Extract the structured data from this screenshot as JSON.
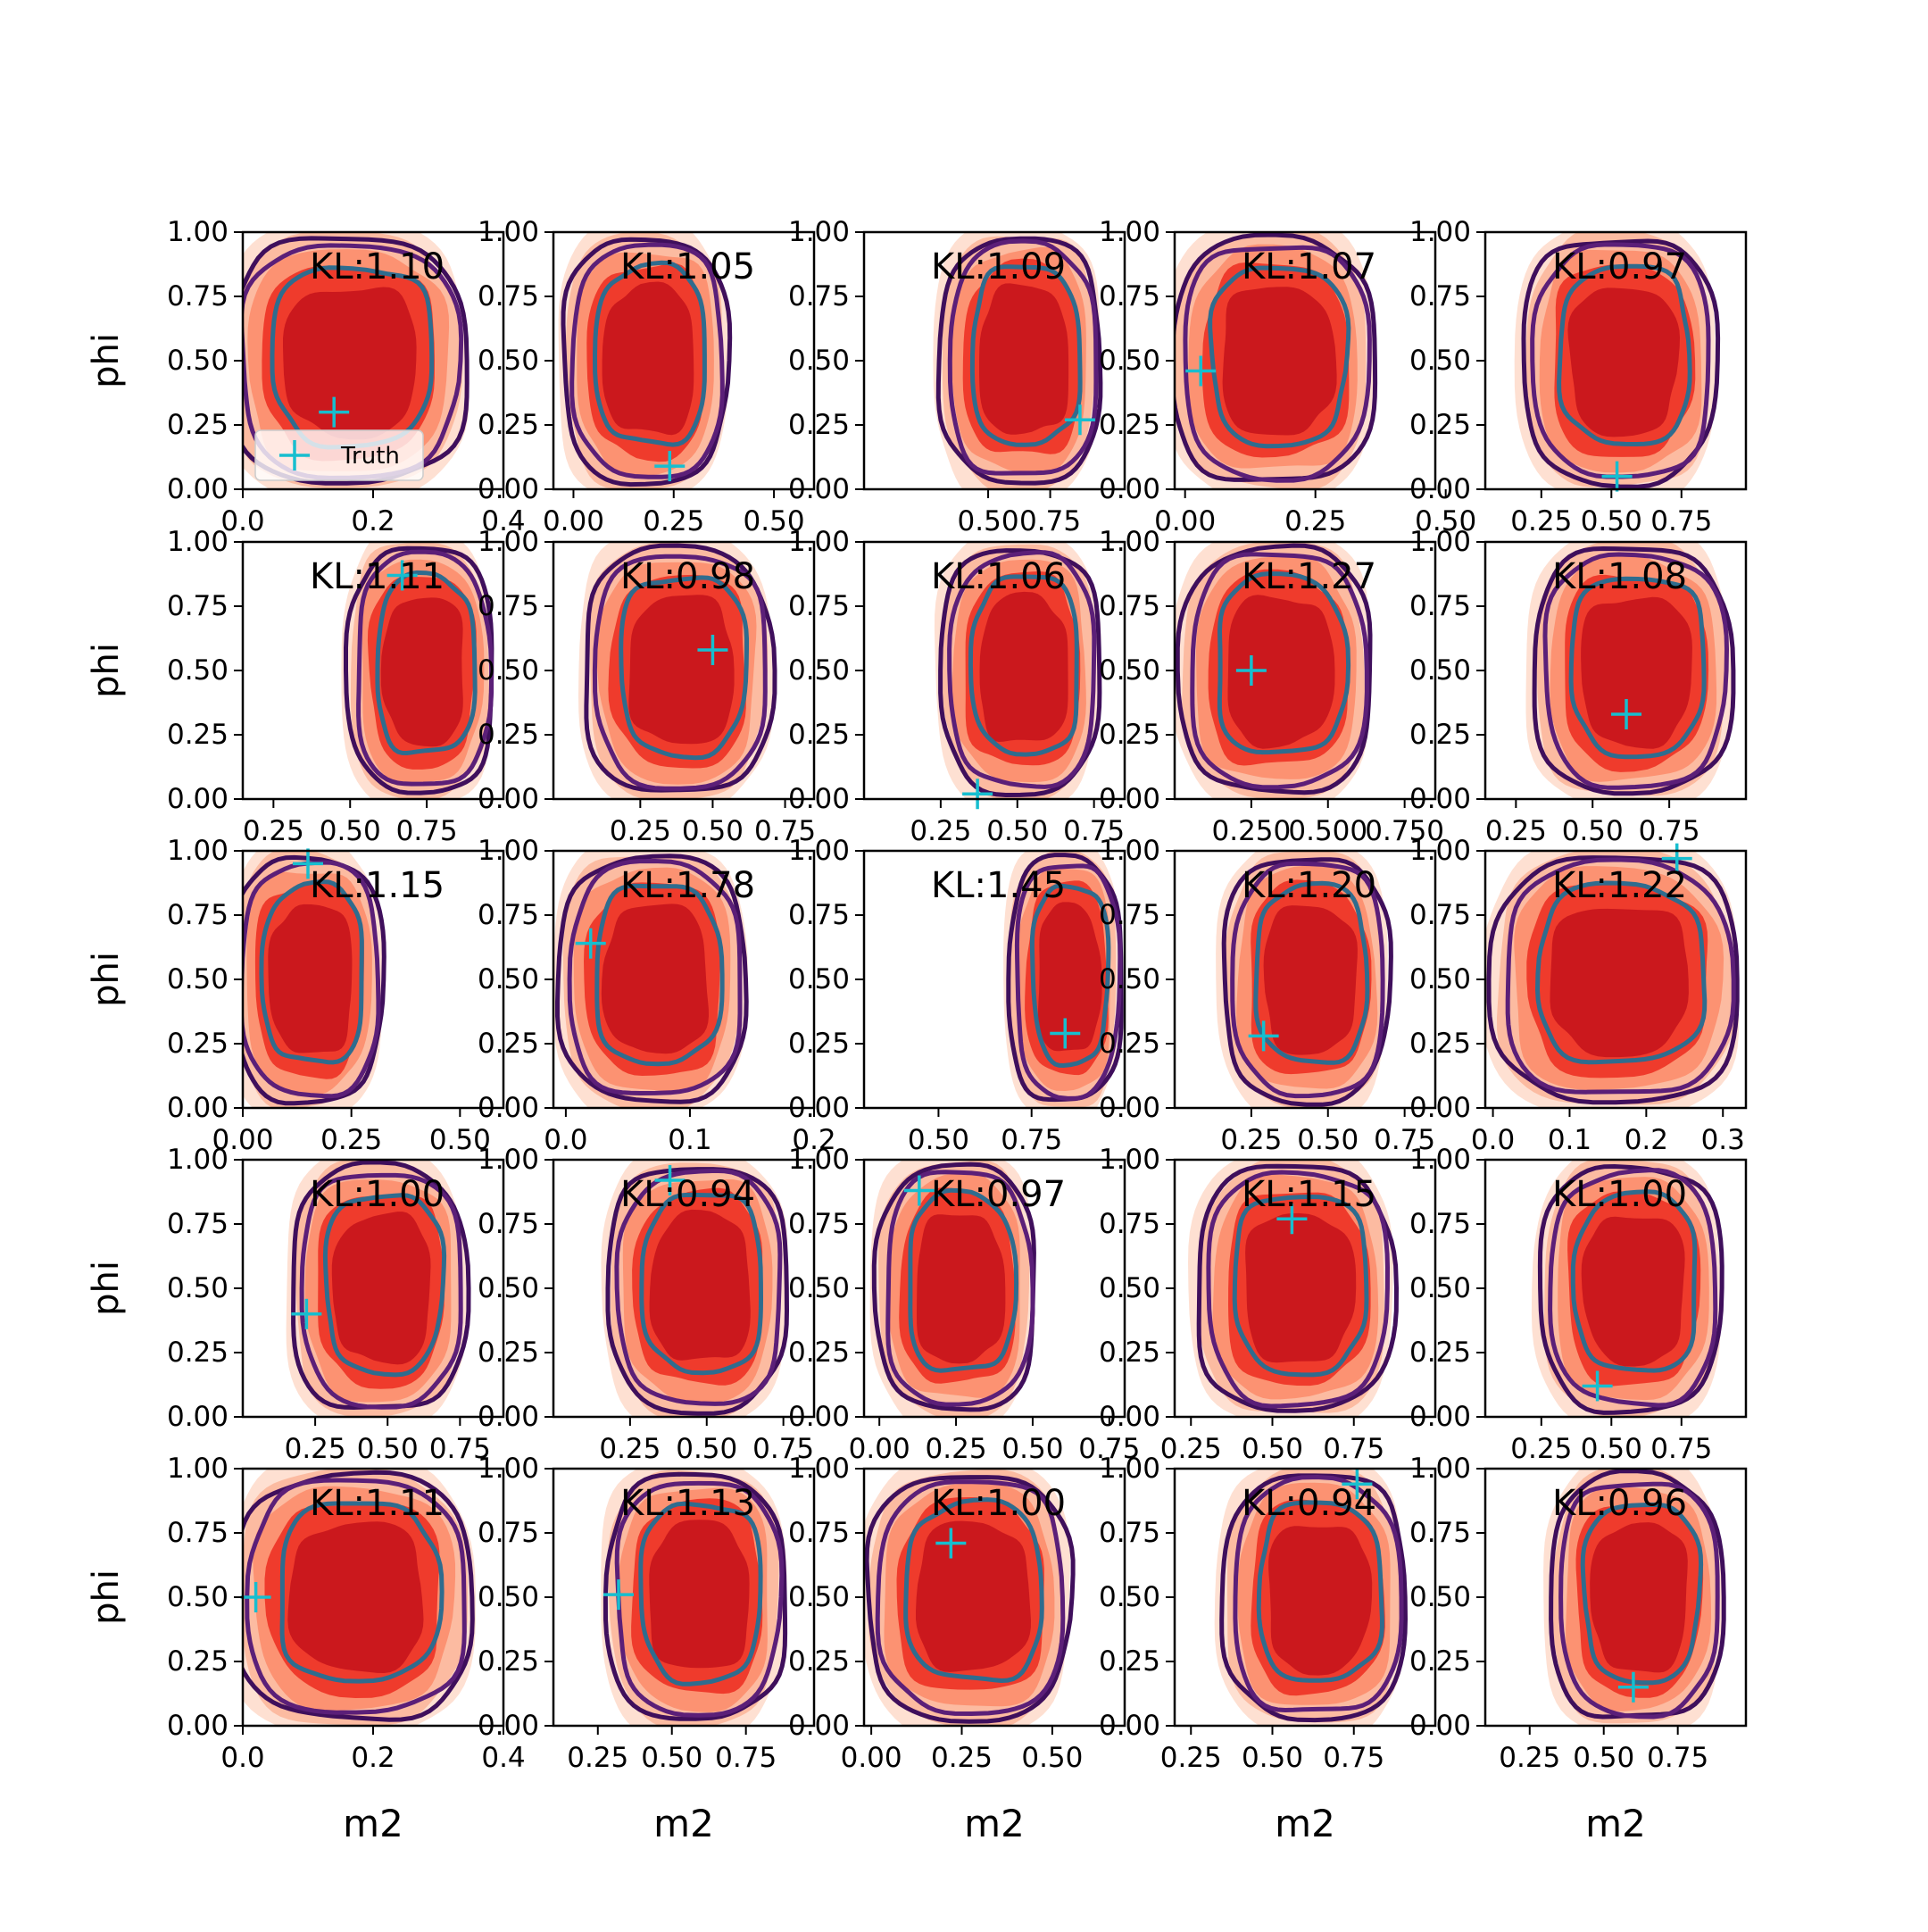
{
  "chart_data": {
    "type": "contour-grid",
    "rows": 5,
    "cols": 5,
    "ylabel": "phi",
    "xlabel": "m2",
    "legend": {
      "label": "Truth",
      "placement": "lower-left",
      "panel": 0
    },
    "y_ticks": [
      "0.00",
      "0.25",
      "0.50",
      "0.75",
      "1.00"
    ],
    "colors": {
      "kde_fill_levels": [
        "#fee0d2",
        "#fcbba1",
        "#fc9272",
        "#ef3b2c",
        "#cb181d"
      ],
      "outer_contour": "#3f0f5c",
      "middle_contour": "#5b1f78",
      "inner_contour": "#2f6c8e",
      "truth_marker": "#17becf"
    },
    "panels": [
      {
        "kl": "KL:1.10",
        "xlim": [
          0.0,
          0.4
        ],
        "xticks": [
          0.0,
          0.2,
          0.4
        ],
        "xtick_labels": [
          "0.0",
          "0.2",
          "0.4"
        ],
        "truth": [
          0.14,
          0.3
        ],
        "cx": 0.16,
        "rx": 0.17,
        "cy": 0.5,
        "ry": 0.48
      },
      {
        "kl": "KL:1.05",
        "xlim": [
          -0.05,
          0.6
        ],
        "xticks": [
          0.0,
          0.25,
          0.5
        ],
        "xtick_labels": [
          "0.00",
          "0.25",
          "0.50"
        ],
        "truth": [
          0.24,
          0.09
        ],
        "cx": 0.18,
        "rx": 0.19,
        "cy": 0.5,
        "ry": 0.48
      },
      {
        "kl": "KL:1.09",
        "xlim": [
          0.0,
          1.05
        ],
        "xticks": [
          0.5,
          0.75
        ],
        "xtick_labels": [
          "0.50",
          "0.75"
        ],
        "truth": [
          0.87,
          0.27
        ],
        "cx": 0.63,
        "rx": 0.3,
        "cy": 0.5,
        "ry": 0.48
      },
      {
        "kl": "KL:1.07",
        "xlim": [
          -0.02,
          0.48
        ],
        "xticks": [
          0.0,
          0.25,
          0.5
        ],
        "xtick_labels": [
          "0.00",
          "0.25",
          "0.50"
        ],
        "truth": [
          0.03,
          0.46
        ],
        "cx": 0.17,
        "rx": 0.18,
        "cy": 0.5,
        "ry": 0.48
      },
      {
        "kl": "KL:0.97",
        "xlim": [
          0.05,
          0.98
        ],
        "xticks": [
          0.25,
          0.5,
          0.75
        ],
        "xtick_labels": [
          "0.25",
          "0.50",
          "0.75"
        ],
        "truth": [
          0.52,
          0.05
        ],
        "cx": 0.53,
        "rx": 0.32,
        "cy": 0.5,
        "ry": 0.48
      },
      {
        "kl": "KL:1.11",
        "xlim": [
          0.15,
          1.0
        ],
        "xticks": [
          0.25,
          0.5,
          0.75
        ],
        "xtick_labels": [
          "0.25",
          "0.50",
          "0.75"
        ],
        "truth": [
          0.67,
          0.87
        ],
        "cx": 0.73,
        "rx": 0.22,
        "cy": 0.5,
        "ry": 0.48
      },
      {
        "kl": "KL:0.98",
        "xlim": [
          -0.05,
          0.85
        ],
        "xticks": [
          0.25,
          0.5,
          0.75
        ],
        "xtick_labels": [
          "0.25",
          "0.50",
          "0.75"
        ],
        "truth": [
          0.5,
          0.58
        ],
        "cx": 0.38,
        "rx": 0.3,
        "cy": 0.5,
        "ry": 0.48
      },
      {
        "kl": "KL:1.06",
        "xlim": [
          0.0,
          0.85
        ],
        "xticks": [
          0.25,
          0.5,
          0.75
        ],
        "xtick_labels": [
          "0.25",
          "0.50",
          "0.75"
        ],
        "truth": [
          0.37,
          0.02
        ],
        "cx": 0.51,
        "rx": 0.24,
        "cy": 0.5,
        "ry": 0.48
      },
      {
        "kl": "KL:1.27",
        "xlim": [
          0.0,
          0.85
        ],
        "xticks": [
          0.25,
          0.5,
          0.75
        ],
        "xtick_labels": [
          "0.250",
          "0.500",
          "0.750"
        ],
        "truth": [
          0.25,
          0.5
        ],
        "cx": 0.33,
        "rx": 0.29,
        "cy": 0.5,
        "ry": 0.48
      },
      {
        "kl": "KL:1.08",
        "xlim": [
          0.15,
          1.0
        ],
        "xticks": [
          0.25,
          0.5,
          0.75
        ],
        "xtick_labels": [
          "0.25",
          "0.50",
          "0.75"
        ],
        "truth": [
          0.61,
          0.33
        ],
        "cx": 0.63,
        "rx": 0.3,
        "cy": 0.5,
        "ry": 0.48
      },
      {
        "kl": "KL:1.15",
        "xlim": [
          0.0,
          0.6
        ],
        "xticks": [
          0.0,
          0.25,
          0.5
        ],
        "xtick_labels": [
          "0.00",
          "0.25",
          "0.50"
        ],
        "truth": [
          0.15,
          0.95
        ],
        "cx": 0.15,
        "rx": 0.16,
        "cy": 0.5,
        "ry": 0.48
      },
      {
        "kl": "KL:1.78",
        "xlim": [
          -0.01,
          0.2
        ],
        "xticks": [
          0.0,
          0.1,
          0.2
        ],
        "xtick_labels": [
          "0.0",
          "0.1",
          "0.2"
        ],
        "truth": [
          0.02,
          0.64
        ],
        "cx": 0.07,
        "rx": 0.07,
        "cy": 0.5,
        "ry": 0.48
      },
      {
        "kl": "KL:1.45",
        "xlim": [
          0.3,
          1.0
        ],
        "xticks": [
          0.5,
          0.75
        ],
        "xtick_labels": [
          "0.50",
          "0.75"
        ],
        "truth": [
          0.84,
          0.29
        ],
        "cx": 0.84,
        "rx": 0.14,
        "cy": 0.5,
        "ry": 0.48
      },
      {
        "kl": "KL:1.20",
        "xlim": [
          0.0,
          0.85
        ],
        "xticks": [
          0.25,
          0.5,
          0.75
        ],
        "xtick_labels": [
          "0.25",
          "0.50",
          "0.75"
        ],
        "truth": [
          0.29,
          0.28
        ],
        "cx": 0.43,
        "rx": 0.25,
        "cy": 0.5,
        "ry": 0.48
      },
      {
        "kl": "KL:1.22",
        "xlim": [
          -0.01,
          0.33
        ],
        "xticks": [
          0.0,
          0.1,
          0.2,
          0.3
        ],
        "xtick_labels": [
          "0.0",
          "0.1",
          "0.2",
          "0.3"
        ],
        "truth": [
          0.24,
          0.97
        ],
        "cx": 0.16,
        "rx": 0.15,
        "cy": 0.5,
        "ry": 0.48
      },
      {
        "kl": "KL:1.00",
        "xlim": [
          0.0,
          0.9
        ],
        "xticks": [
          0.25,
          0.5,
          0.75
        ],
        "xtick_labels": [
          "0.25",
          "0.50",
          "0.75"
        ],
        "truth": [
          0.22,
          0.4
        ],
        "cx": 0.47,
        "rx": 0.28,
        "cy": 0.5,
        "ry": 0.48
      },
      {
        "kl": "KL:0.94",
        "xlim": [
          0.0,
          0.85
        ],
        "xticks": [
          0.25,
          0.5,
          0.75
        ],
        "xtick_labels": [
          "0.25",
          "0.50",
          "0.75"
        ],
        "truth": [
          0.38,
          0.92
        ],
        "cx": 0.47,
        "rx": 0.27,
        "cy": 0.5,
        "ry": 0.48
      },
      {
        "kl": "KL:0.97",
        "xlim": [
          -0.05,
          0.8
        ],
        "xticks": [
          0.0,
          0.25,
          0.5,
          0.75
        ],
        "xtick_labels": [
          "0.00",
          "0.25",
          "0.50",
          "0.75"
        ],
        "truth": [
          0.13,
          0.88
        ],
        "cx": 0.25,
        "rx": 0.24,
        "cy": 0.5,
        "ry": 0.48
      },
      {
        "kl": "KL:1.15",
        "xlim": [
          0.2,
          1.0
        ],
        "xticks": [
          0.25,
          0.5,
          0.75
        ],
        "xtick_labels": [
          "0.25",
          "0.50",
          "0.75"
        ],
        "truth": [
          0.56,
          0.77
        ],
        "cx": 0.57,
        "rx": 0.28,
        "cy": 0.5,
        "ry": 0.48
      },
      {
        "kl": "KL:1.00",
        "xlim": [
          0.05,
          0.98
        ],
        "xticks": [
          0.25,
          0.5,
          0.75
        ],
        "xtick_labels": [
          "0.25",
          "0.50",
          "0.75"
        ],
        "truth": [
          0.45,
          0.12
        ],
        "cx": 0.57,
        "rx": 0.3,
        "cy": 0.5,
        "ry": 0.48
      },
      {
        "kl": "KL:1.11",
        "xlim": [
          0.0,
          0.4
        ],
        "xticks": [
          0.0,
          0.2,
          0.4
        ],
        "xtick_labels": [
          "0.0",
          "0.2",
          "0.4"
        ],
        "truth": [
          0.02,
          0.5
        ],
        "cx": 0.17,
        "rx": 0.17,
        "cy": 0.5,
        "ry": 0.48
      },
      {
        "kl": "KL:1.13",
        "xlim": [
          0.1,
          0.98
        ],
        "xticks": [
          0.25,
          0.5,
          0.75
        ],
        "xtick_labels": [
          "0.25",
          "0.50",
          "0.75"
        ],
        "truth": [
          0.32,
          0.51
        ],
        "cx": 0.58,
        "rx": 0.28,
        "cy": 0.5,
        "ry": 0.48
      },
      {
        "kl": "KL:1.00",
        "xlim": [
          -0.02,
          0.7
        ],
        "xticks": [
          0.0,
          0.25,
          0.5
        ],
        "xtick_labels": [
          "0.00",
          "0.25",
          "0.50"
        ],
        "truth": [
          0.22,
          0.71
        ],
        "cx": 0.27,
        "rx": 0.26,
        "cy": 0.5,
        "ry": 0.48
      },
      {
        "kl": "KL:0.94",
        "xlim": [
          0.2,
          1.0
        ],
        "xticks": [
          0.25,
          0.5,
          0.75
        ],
        "xtick_labels": [
          "0.25",
          "0.50",
          "0.75"
        ],
        "truth": [
          0.76,
          0.94
        ],
        "cx": 0.63,
        "rx": 0.26,
        "cy": 0.5,
        "ry": 0.48
      },
      {
        "kl": "KL:0.96",
        "xlim": [
          0.1,
          0.98
        ],
        "xticks": [
          0.25,
          0.5,
          0.75
        ],
        "xtick_labels": [
          "0.25",
          "0.50",
          "0.75"
        ],
        "truth": [
          0.6,
          0.15
        ],
        "cx": 0.61,
        "rx": 0.27,
        "cy": 0.5,
        "ry": 0.48
      }
    ]
  }
}
